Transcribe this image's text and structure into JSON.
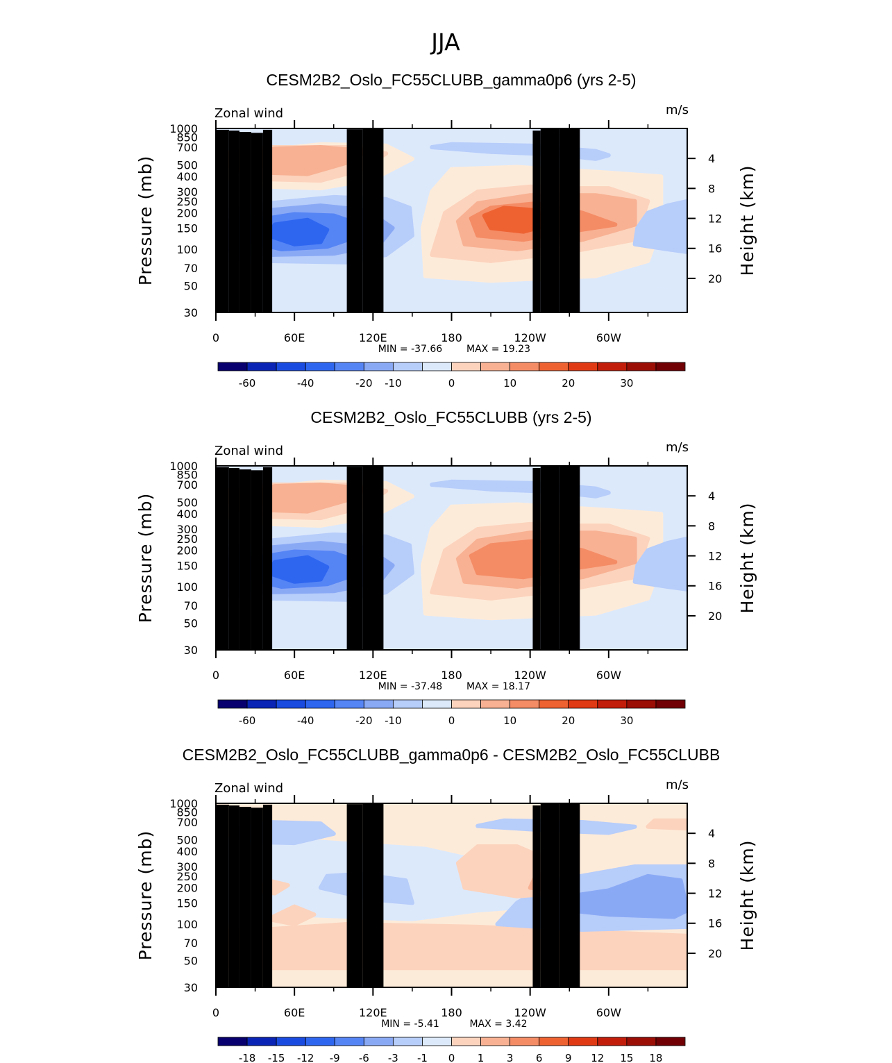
{
  "figure": {
    "title": "JJA",
    "colors": {
      "palette_levels": [
        "#08006e",
        "#0a25b5",
        "#1a4be0",
        "#2e66f0",
        "#5584f5",
        "#8aa9f5",
        "#b7cdfa",
        "#dce9fb",
        "#fdebd9",
        "#fcd3bd",
        "#f8b193",
        "#f48c66",
        "#ee6232",
        "#e03a14",
        "#c11d0a",
        "#9a0e06",
        "#700004"
      ]
    }
  },
  "chart_data": [
    {
      "type": "contour",
      "title": "CESM2B2_Oslo_FC55CLUBB_gamma0p6 (yrs 2-5)",
      "variable": "Zonal wind",
      "units": "m/s",
      "ylabel": "Pressure (mb)",
      "ylabel_right": "Height (km)",
      "x_ticks": [
        "0",
        "60E",
        "120E",
        "180",
        "120W",
        "60W"
      ],
      "y_ticks": [
        "30",
        "50",
        "70",
        "100",
        "150",
        "200",
        "250",
        "300",
        "400",
        "500",
        "700",
        "850",
        "1000"
      ],
      "y_right_ticks": [
        "20",
        "16",
        "12",
        "8",
        "4"
      ],
      "ylim": [
        1000,
        30
      ],
      "min_label": "MIN = -37.66",
      "max_label": "MAX = 19.23",
      "min": -37.66,
      "max": 19.23,
      "colorbar_ticks": [
        "-60",
        "-40",
        "-20",
        "-10",
        "0",
        "10",
        "20",
        "30"
      ],
      "features": [
        {
          "name": "easterly-jet-core",
          "lon": 70,
          "pressure": 150,
          "value": -37.66
        },
        {
          "name": "westerly-jet-core",
          "lon": 248,
          "pressure": 170,
          "value": 19.23
        },
        {
          "name": "low-level-westerly",
          "lon": 70,
          "pressure": 650,
          "value": 7
        }
      ]
    },
    {
      "type": "contour",
      "title": "CESM2B2_Oslo_FC55CLUBB (yrs 2-5)",
      "variable": "Zonal wind",
      "units": "m/s",
      "ylabel": "Pressure (mb)",
      "ylabel_right": "Height (km)",
      "x_ticks": [
        "0",
        "60E",
        "120E",
        "180",
        "120W",
        "60W"
      ],
      "y_ticks": [
        "30",
        "50",
        "70",
        "100",
        "150",
        "200",
        "250",
        "300",
        "400",
        "500",
        "700",
        "850",
        "1000"
      ],
      "y_right_ticks": [
        "20",
        "16",
        "12",
        "8",
        "4"
      ],
      "ylim": [
        1000,
        30
      ],
      "min_label": "MIN = -37.48",
      "max_label": "MAX = 18.17",
      "min": -37.48,
      "max": 18.17,
      "colorbar_ticks": [
        "-60",
        "-40",
        "-20",
        "-10",
        "0",
        "10",
        "20",
        "30"
      ],
      "features": [
        {
          "name": "easterly-jet-core",
          "lon": 70,
          "pressure": 140,
          "value": -37.48
        },
        {
          "name": "westerly-jet-core",
          "lon": 250,
          "pressure": 150,
          "value": 18.17
        },
        {
          "name": "low-level-westerly",
          "lon": 70,
          "pressure": 600,
          "value": 7
        }
      ]
    },
    {
      "type": "contour",
      "title": "CESM2B2_Oslo_FC55CLUBB_gamma0p6 - CESM2B2_Oslo_FC55CLUBB",
      "variable": "Zonal wind",
      "units": "m/s",
      "ylabel": "Pressure (mb)",
      "ylabel_right": "Height (km)",
      "x_ticks": [
        "0",
        "60E",
        "120E",
        "180",
        "120W",
        "60W"
      ],
      "y_ticks": [
        "30",
        "50",
        "70",
        "100",
        "150",
        "200",
        "250",
        "300",
        "400",
        "500",
        "700",
        "850",
        "1000"
      ],
      "y_right_ticks": [
        "20",
        "16",
        "12",
        "8",
        "4"
      ],
      "ylim": [
        1000,
        30
      ],
      "min_label": "MIN = -5.41",
      "max_label": "MAX = 3.42",
      "min": -5.41,
      "max": 3.42,
      "colorbar_ticks": [
        "-18",
        "-15",
        "-12",
        "-9",
        "-6",
        "-3",
        "-1",
        "0",
        "1",
        "3",
        "6",
        "9",
        "12",
        "15",
        "18"
      ],
      "features": [
        {
          "name": "diff-negative-east-pacific",
          "lon": 305,
          "pressure": 150,
          "value": -5.41
        },
        {
          "name": "diff-positive-central",
          "lon": 240,
          "pressure": 250,
          "value": 3.42
        },
        {
          "name": "diff-negative-indian",
          "lon": 140,
          "pressure": 180,
          "value": -4
        }
      ]
    }
  ]
}
